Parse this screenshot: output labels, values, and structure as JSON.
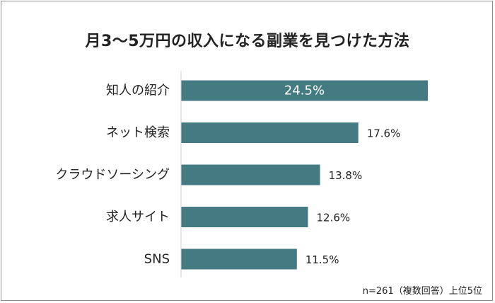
{
  "chart_data": {
    "type": "bar",
    "orientation": "horizontal",
    "title": "月3～5万円の収入になる副業を見つけた方法",
    "categories": [
      "知人の紹介",
      "ネット検索",
      "クラウドソーシング",
      "求人サイト",
      "SNS"
    ],
    "values": [
      24.5,
      17.6,
      13.8,
      12.6,
      11.5
    ],
    "value_labels": [
      "24.5%",
      "17.6%",
      "13.8%",
      "12.6%",
      "11.5%"
    ],
    "unit": "%",
    "xlim": [
      0,
      24.5
    ],
    "grid": false,
    "legend": "none",
    "bar_color": "#447b82",
    "highlight_label_color": "#ffffff",
    "note": "n=261（複数回答）上位5位"
  }
}
